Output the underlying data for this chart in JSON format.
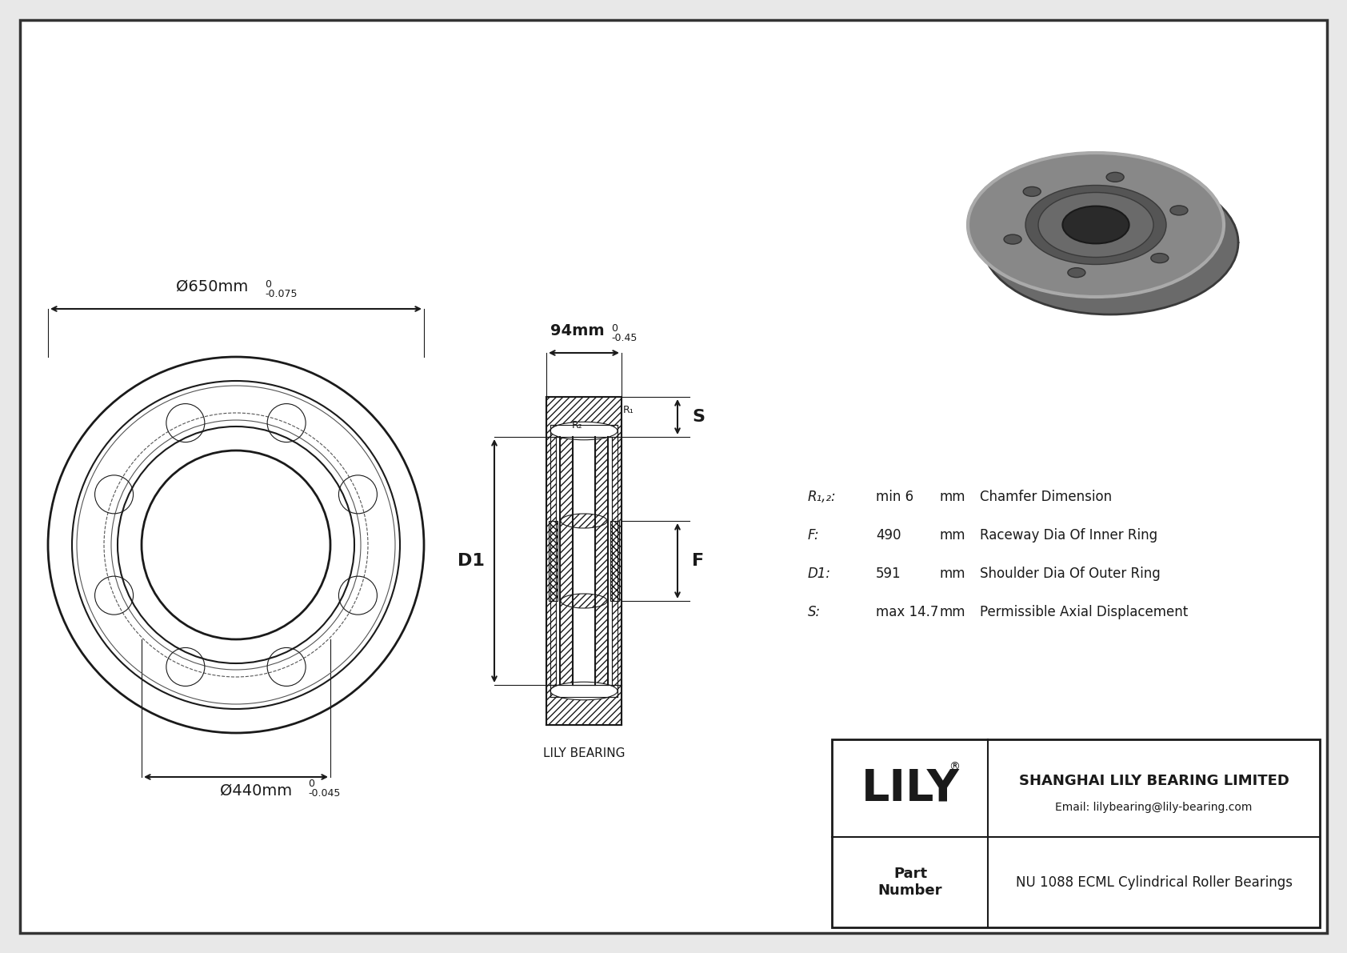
{
  "bg_color": "#e8e8e8",
  "drawing_bg": "#ffffff",
  "line_color": "#1a1a1a",
  "title_company": "SHANGHAI LILY BEARING LIMITED",
  "title_email": "Email: lilybearing@lily-bearing.com",
  "part_label": "Part\nNumber",
  "part_number": "NU 1088 ECML Cylindrical Roller Bearings",
  "lily_text": "LILY",
  "registered": "®",
  "lily_bearing_label": "LILY BEARING",
  "dim_outer_main": "Ø650mm",
  "dim_outer_tol_top": "0",
  "dim_outer_tol_bot": "-0.075",
  "dim_inner_main": "Ø440mm",
  "dim_inner_tol_top": "0",
  "dim_inner_tol_bot": "-0.045",
  "dim_width_main": "94mm",
  "dim_width_tol_top": "0",
  "dim_width_tol_bot": "-0.45",
  "label_D1": "D1",
  "label_F": "F",
  "label_S": "S",
  "label_R1": "R₁",
  "label_R2": "R₂",
  "spec_rows": [
    [
      "R₁,₂:",
      "min 6",
      "mm",
      "Chamfer Dimension"
    ],
    [
      "F:",
      "490",
      "mm",
      "Raceway Dia Of Inner Ring"
    ],
    [
      "D1:",
      "591",
      "mm",
      "Shoulder Dia Of Outer Ring"
    ],
    [
      "S:",
      "max 14.7",
      "mm",
      "Permissible Axial Displacement"
    ]
  ]
}
